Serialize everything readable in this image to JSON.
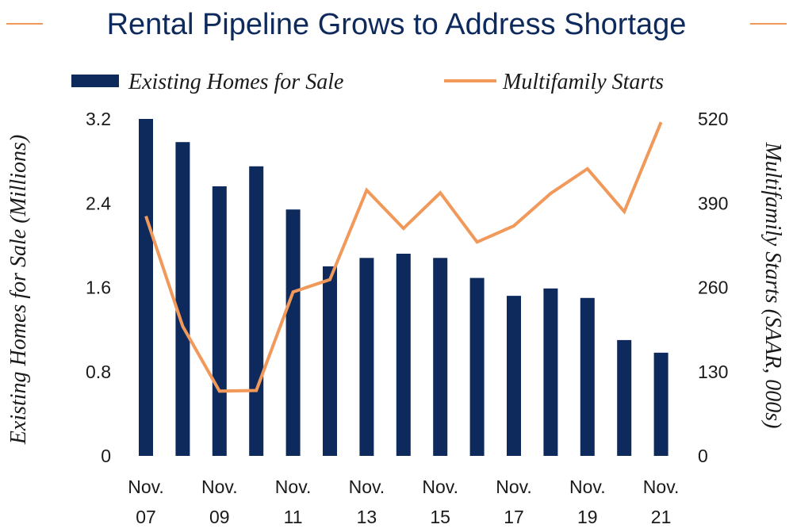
{
  "chart_data": {
    "type": "bar+line",
    "title": "Rental Pipeline Grows to Address Shortage",
    "colors": {
      "bars": "#0e2a5c",
      "line": "#f0995a",
      "title": "#0e2a5c",
      "title_rule": "#f0995a"
    },
    "legend": {
      "bars": "Existing Homes for Sale",
      "line": "Multifamily Starts",
      "placement": "top"
    },
    "y_left": {
      "label": "Existing Homes for Sale (Millions)",
      "lim": [
        0,
        3.2
      ],
      "ticks": [
        "0",
        "0.8",
        "1.6",
        "2.4",
        "3.2"
      ]
    },
    "y_right": {
      "label": "Multifamily Starts (SAAR, 000s)",
      "lim": [
        0,
        520
      ],
      "ticks": [
        "0",
        "130",
        "260",
        "390",
        "520"
      ]
    },
    "x_tick_labels": [
      {
        "month": "Nov.",
        "year": "07"
      },
      {
        "month": "Nov.",
        "year": "09"
      },
      {
        "month": "Nov.",
        "year": "11"
      },
      {
        "month": "Nov.",
        "year": "13"
      },
      {
        "month": "Nov.",
        "year": "15"
      },
      {
        "month": "Nov.",
        "year": "17"
      },
      {
        "month": "Nov.",
        "year": "19"
      },
      {
        "month": "Nov.",
        "year": "21"
      }
    ],
    "categories": [
      "Nov. 07",
      "Nov. 08",
      "Nov. 09",
      "Nov. 10",
      "Nov. 11",
      "Nov. 12",
      "Nov. 13",
      "Nov. 14",
      "Nov. 15",
      "Nov. 16",
      "Nov. 17",
      "Nov. 18",
      "Nov. 19",
      "Nov. 20",
      "Nov. 21"
    ],
    "series": [
      {
        "name": "Existing Homes for Sale",
        "axis": "left",
        "kind": "bar",
        "values": [
          3.2,
          2.98,
          2.56,
          2.75,
          2.34,
          1.8,
          1.88,
          1.92,
          1.88,
          1.69,
          1.52,
          1.59,
          1.5,
          1.1,
          0.98
        ]
      },
      {
        "name": "Multifamily Starts",
        "axis": "right",
        "kind": "line",
        "values": [
          370,
          200,
          100,
          101,
          253,
          272,
          410,
          351,
          406,
          330,
          355,
          405,
          443,
          377,
          515
        ]
      }
    ]
  }
}
